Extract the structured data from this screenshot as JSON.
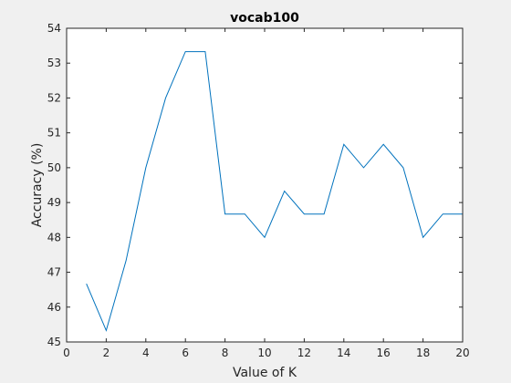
{
  "chart_data": {
    "type": "line",
    "title": "vocab100",
    "xlabel": "Value of K",
    "ylabel": "Accuracy (%)",
    "xlim": [
      0,
      20
    ],
    "ylim": [
      45,
      54
    ],
    "xticks": [
      0,
      2,
      4,
      6,
      8,
      10,
      12,
      14,
      16,
      18,
      20
    ],
    "yticks": [
      45,
      46,
      47,
      48,
      49,
      50,
      51,
      52,
      53,
      54
    ],
    "grid": false,
    "legend": "none",
    "series": [
      {
        "color": "#0072bd",
        "x": [
          1,
          2,
          3,
          4,
          5,
          6,
          7,
          8,
          9,
          10,
          11,
          12,
          13,
          14,
          15,
          16,
          17,
          18,
          19,
          20
        ],
        "y": [
          46.67,
          45.33,
          47.33,
          50.0,
          52.0,
          53.33,
          53.33,
          48.67,
          48.67,
          48.0,
          49.33,
          48.67,
          48.67,
          50.67,
          50.0,
          50.67,
          50.0,
          48.0,
          48.67,
          48.67
        ]
      }
    ]
  }
}
